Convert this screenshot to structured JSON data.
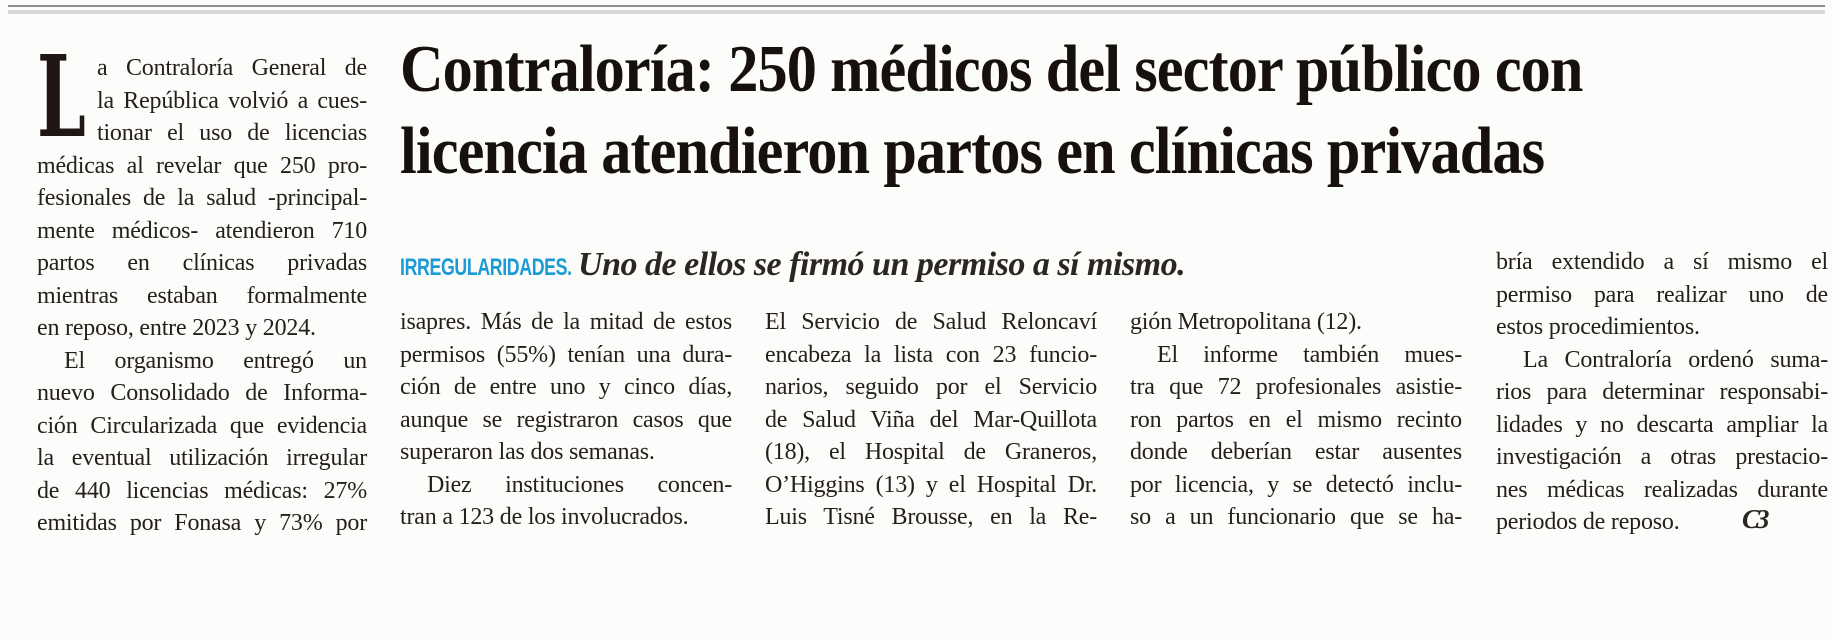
{
  "article": {
    "headline": {
      "lines": [
        "Contraloría: 250 médicos del sector público con",
        "licencia atendieron partos en clínicas privadas"
      ]
    },
    "kicker": {
      "label": "IRREGULARIDADES.",
      "label_color": "#1b9bd4",
      "text": "Uno de ellos se firmó un permiso a sí mismo."
    },
    "drop_cap": "L",
    "end_mark": "C3",
    "intro_column": {
      "paragraphs": [
        {
          "indent": false,
          "cont": false,
          "lines": [
            "a Contraloría General de",
            "la República volvió a cues-",
            "tionar el uso de licencias",
            "médicas al revelar que 250 pro-",
            "fesionales de la salud -principal-",
            "mente médicos- atendieron 710",
            "partos en clínicas privadas",
            "mientras estaban formalmente",
            "en reposo, entre 2023 y 2024."
          ]
        },
        {
          "indent": true,
          "cont": true,
          "lines": [
            "El organismo entregó un",
            "nuevo Consolidado de Informa-",
            "ción Circularizada que evidencia",
            "la eventual utilización irregular",
            "de 440 licencias médicas: 27%",
            "emitidas por Fonasa y 73% por"
          ]
        }
      ]
    },
    "body_columns": [
      {
        "paragraphs": [
          {
            "indent": false,
            "cont": false,
            "lines": [
              "isapres. Más de la mitad de estos",
              "permisos (55%) tenían una dura-",
              "ción de entre uno y cinco días,",
              "aunque se registraron casos que",
              "superaron las dos semanas."
            ]
          },
          {
            "indent": true,
            "cont": false,
            "lines": [
              "Diez instituciones concen-",
              "tran a 123 de los involucrados."
            ]
          }
        ]
      },
      {
        "paragraphs": [
          {
            "indent": false,
            "cont": true,
            "lines": [
              "El Servicio de Salud Reloncaví",
              "encabeza la lista con 23 funcio-",
              "narios, seguido por el Servicio",
              "de Salud Viña del Mar-Quillota",
              "(18), el Hospital de Graneros,",
              "O’Higgins (13) y el Hospital Dr.",
              "Luis Tisné Brousse, en la Re-"
            ]
          }
        ]
      },
      {
        "paragraphs": [
          {
            "indent": false,
            "cont": false,
            "lines": [
              "gión Metropolitana (12)."
            ]
          },
          {
            "indent": true,
            "cont": true,
            "lines": [
              "El informe también mues-",
              "tra que 72 profesionales asistie-",
              "ron partos en el mismo recinto",
              "donde deberían estar ausentes",
              "por licencia, y se detectó inclu-",
              "so a un funcionario que se ha-"
            ]
          }
        ]
      },
      {
        "paragraphs": [
          {
            "indent": false,
            "cont": false,
            "lines": [
              "bría extendido a sí mismo el",
              "permiso para realizar uno de",
              "estos procedimientos."
            ]
          },
          {
            "indent": true,
            "cont": false,
            "lines": [
              "La Contraloría ordenó suma-",
              "rios para determinar responsabi-",
              "lidades y no descarta ampliar la",
              "investigación a otras prestacio-",
              "nes médicas realizadas durante",
              "periodos de reposo."
            ]
          }
        ]
      }
    ]
  }
}
